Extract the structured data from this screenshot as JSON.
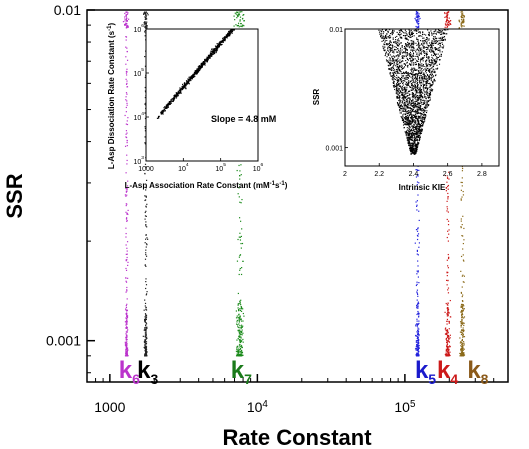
{
  "chart_data": [
    {
      "type": "scatter",
      "title": "",
      "xlabel": "Rate Constant",
      "ylabel": "SSR",
      "xscale": "log",
      "yscale": "log",
      "xlim": [
        700,
        500000
      ],
      "ylim": [
        0.00075,
        0.01
      ],
      "xticks": [
        {
          "value": 1000,
          "label": "1000"
        },
        {
          "value": 10000,
          "label": "10",
          "sup": "4"
        },
        {
          "value": 100000,
          "label": "10",
          "sup": "5"
        }
      ],
      "yticks": [
        {
          "value": 0.001,
          "label": "0.001"
        },
        {
          "value": 0.01,
          "label": "0.01"
        }
      ],
      "series": [
        {
          "name": "k",
          "sub": "6",
          "x_center": 1300,
          "x_spread": 0.004,
          "color": "#bb33cc",
          "labelColor": "#bb33cc",
          "labelX": 1150
        },
        {
          "name": "k",
          "sub": "3",
          "x_center": 1750,
          "x_spread": 0.004,
          "color": "#222222",
          "labelColor": "#000000",
          "labelX": 1530
        },
        {
          "name": "k",
          "sub": "7",
          "x_center": 7600,
          "x_spread": 0.012,
          "color": "#1a8a1a",
          "labelColor": "#1a7a1a",
          "labelX": 6600
        },
        {
          "name": "k",
          "sub": "5",
          "x_center": 122000,
          "x_spread": 0.005,
          "color": "#2222dd",
          "labelColor": "#1a1acc",
          "labelX": 117000
        },
        {
          "name": "k",
          "sub": "4",
          "x_center": 195000,
          "x_spread": 0.007,
          "color": "#cc1a1a",
          "labelColor": "#cc1a1a",
          "labelX": 165000
        },
        {
          "name": "k",
          "sub": "8",
          "x_center": 245000,
          "x_spread": 0.007,
          "color": "#8b6a1a",
          "labelColor": "#8b5a1a",
          "labelX": 265000
        }
      ]
    },
    {
      "type": "scatter",
      "title": "",
      "xlabel": "L-Asp Association Rate Constant (mM",
      "xlabel_sup": "-1",
      "xlabel_tail": "s",
      "xlabel_tail_sup": "-1",
      "xlabel_close": ")",
      "ylabel": "L-Asp Dissociation Rate Constant (s",
      "ylabel_sup": "-1",
      "ylabel_close": ")",
      "xscale": "log",
      "yscale": "log",
      "xlim": [
        1000,
        1000000
      ],
      "ylim": [
        1000,
        1000000
      ],
      "xticks": [
        {
          "value": 1000,
          "label": "1000"
        },
        {
          "value": 10000,
          "label": "10",
          "sup": "4"
        },
        {
          "value": 100000,
          "label": "10",
          "sup": "5"
        },
        {
          "value": 1000000,
          "label": "10",
          "sup": "6"
        }
      ],
      "yticks": [
        {
          "value": 1000,
          "label": "10",
          "sup": "3"
        },
        {
          "value": 10000,
          "label": "10",
          "sup": "4"
        },
        {
          "value": 100000,
          "label": "10",
          "sup": "5"
        },
        {
          "value": 1000000,
          "label": "10",
          "sup": "6"
        }
      ],
      "annotation": "Slope = 4.8 mM",
      "slope": 4.8,
      "x_range": [
        2000,
        250000
      ]
    },
    {
      "type": "scatter",
      "title": "",
      "xlabel": "Intrinsic KIE",
      "ylabel": "SSR",
      "xscale": "linear",
      "yscale": "log",
      "xlim": [
        2.0,
        2.9
      ],
      "ylim": [
        0.0007,
        0.01
      ],
      "xticks": [
        {
          "value": 2.0,
          "label": "2"
        },
        {
          "value": 2.2,
          "label": "2.2"
        },
        {
          "value": 2.4,
          "label": "2.4"
        },
        {
          "value": 2.6,
          "label": "2.6"
        },
        {
          "value": 2.8,
          "label": "2.8"
        }
      ],
      "yticks": [
        {
          "value": 0.001,
          "label": "0.001"
        },
        {
          "value": 0.01,
          "label": "0.01"
        }
      ],
      "vertex": {
        "x": 2.4,
        "y": 0.00088
      }
    }
  ]
}
